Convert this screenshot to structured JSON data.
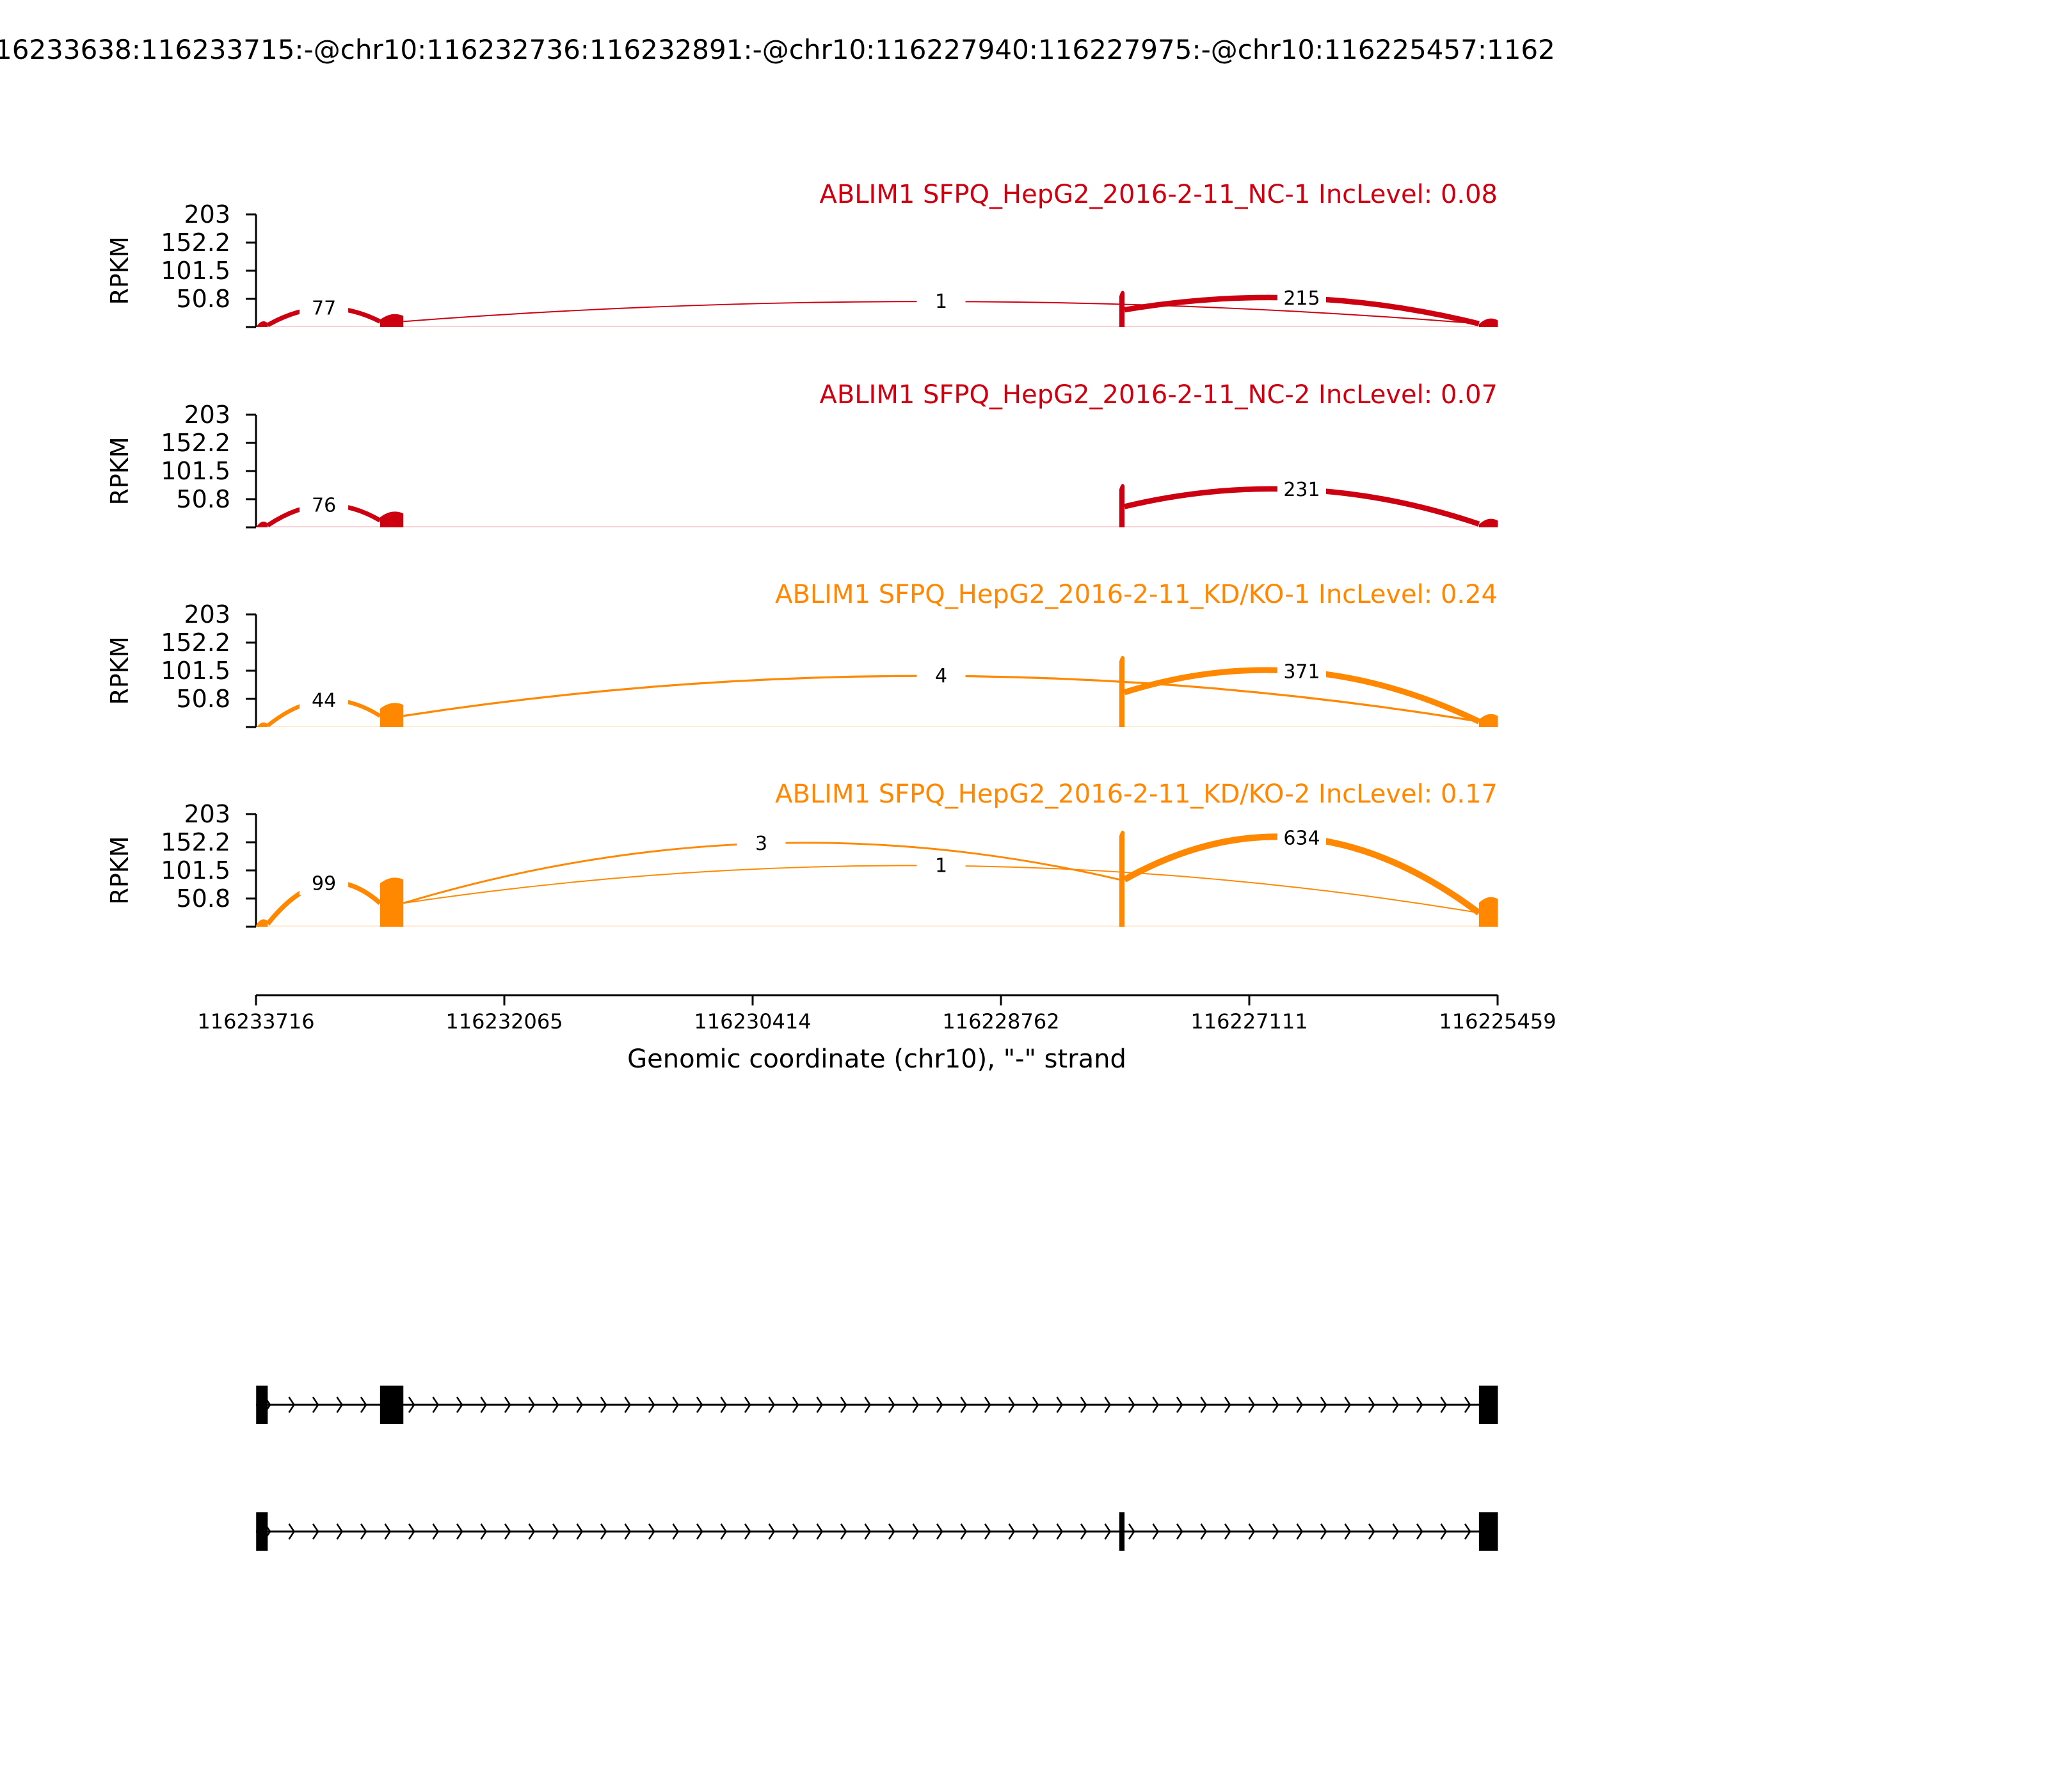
{
  "figure": {
    "title": "16233638:116233715:-@chr10:116232736:116232891:-@chr10:116227940:116227975:-@chr10:116225457:1162"
  },
  "colors": {
    "nc": "#cc0011",
    "kd": "#ff8800",
    "axis": "#000000",
    "gene_model": "#000000"
  },
  "chart_data": {
    "type": "area",
    "subtype": "sashimi",
    "x": {
      "label": "Genomic coordinate (chr10), \"-\" strand",
      "ticks": [
        "116233716",
        "116232065",
        "116230414",
        "116228762",
        "116227111",
        "116225459"
      ],
      "range": [
        116233716,
        116225459
      ],
      "reversed": true
    },
    "y": {
      "label": "RPKM",
      "ticks": [
        "203",
        "152.2",
        "101.5",
        "50.8"
      ],
      "range": [
        0,
        203
      ]
    },
    "exons": [
      {
        "start": 116233715,
        "end": 116233638
      },
      {
        "start": 116232891,
        "end": 116232736
      },
      {
        "start": 116227975,
        "end": 116227940
      },
      {
        "start": 116225583,
        "end": 116225457
      }
    ],
    "panels": [
      {
        "title": "ABLIM1 SFPQ_HepG2_2016-2-11_NC-1 IncLevel: 0.08",
        "color_key": "nc",
        "coverage": [
          7,
          20,
          62,
          12
        ],
        "junctions": [
          {
            "from": 0,
            "to": 1,
            "count": "77",
            "height": 34
          },
          {
            "from": 1,
            "to": 3,
            "count": "1",
            "height": 46
          },
          {
            "from": 2,
            "to": 3,
            "count": "215",
            "height": 52
          }
        ]
      },
      {
        "title": "ABLIM1 SFPQ_HepG2_2016-2-11_NC-2 IncLevel: 0.07",
        "color_key": "nc",
        "coverage": [
          7,
          25,
          75,
          12
        ],
        "junctions": [
          {
            "from": 0,
            "to": 1,
            "count": "76",
            "height": 40
          },
          {
            "from": 2,
            "to": 3,
            "count": "231",
            "height": 68
          }
        ]
      },
      {
        "title": "ABLIM1 SFPQ_HepG2_2016-2-11_KD/KO-1 IncLevel: 0.24",
        "color_key": "kd",
        "coverage": [
          5,
          40,
          125,
          20
        ],
        "junctions": [
          {
            "from": 0,
            "to": 1,
            "count": "44",
            "height": 48
          },
          {
            "from": 1,
            "to": 3,
            "count": "4",
            "height": 92
          },
          {
            "from": 2,
            "to": 3,
            "count": "371",
            "height": 100
          }
        ]
      },
      {
        "title": "ABLIM1 SFPQ_HepG2_2016-2-11_KD/KO-2 IncLevel: 0.17",
        "color_key": "kd",
        "coverage": [
          10,
          85,
          170,
          50
        ],
        "junctions": [
          {
            "from": 0,
            "to": 1,
            "count": "99",
            "height": 78
          },
          {
            "from": 1,
            "to": 3,
            "count": "1",
            "height": 110
          },
          {
            "from": 1,
            "to": 2,
            "count": "3",
            "height": 150
          },
          {
            "from": 2,
            "to": 3,
            "count": "634",
            "height": 160
          }
        ]
      }
    ],
    "gene_models": [
      {
        "exons": [
          0,
          1,
          3
        ]
      },
      {
        "exons": [
          0,
          2,
          3
        ]
      }
    ]
  }
}
